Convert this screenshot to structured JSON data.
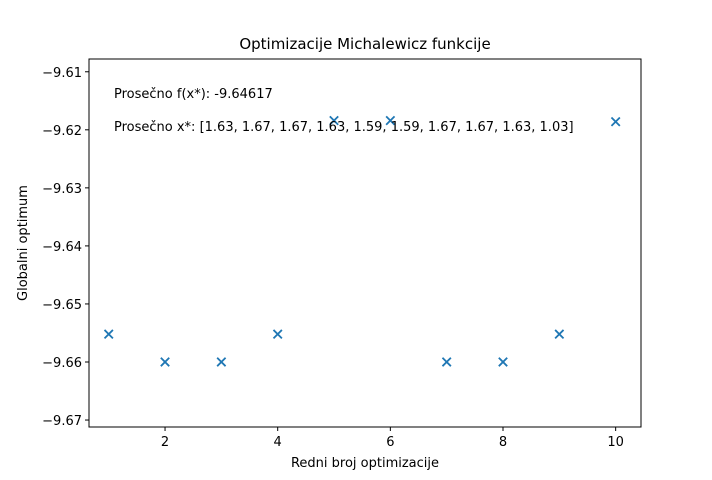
{
  "chart_data": {
    "type": "scatter",
    "title": "Optimizacije Michalewicz funkcije",
    "xlabel": "Redni broj optimizacije",
    "ylabel": "Globalni optimum",
    "xlim": [
      0.65,
      10.45
    ],
    "ylim": [
      -9.6712,
      -9.6078
    ],
    "x_ticks": [
      2,
      4,
      6,
      8,
      10
    ],
    "x_tick_labels": [
      "2",
      "4",
      "6",
      "8",
      "10"
    ],
    "y_ticks": [
      -9.61,
      -9.62,
      -9.63,
      -9.64,
      -9.65,
      -9.66,
      -9.67
    ],
    "y_tick_labels": [
      "−9.61",
      "−9.62",
      "−9.63",
      "−9.64",
      "−9.65",
      "−9.66",
      "−9.67"
    ],
    "grid": false,
    "marker": "x",
    "color": "#1f77b4",
    "x": [
      1,
      2,
      3,
      4,
      5,
      6,
      7,
      8,
      9,
      10
    ],
    "y": [
      -9.6552,
      -9.66,
      -9.66,
      -9.6552,
      -9.6184,
      -9.6184,
      -9.66,
      -9.66,
      -9.6552,
      -9.6186
    ],
    "annotations": [
      "Prosečno f(x*): -9.64617",
      "Prosečno x*: [1.63, 1.67, 1.67, 1.63, 1.59, 1.59, 1.67, 1.67, 1.63, 1.03]"
    ]
  }
}
